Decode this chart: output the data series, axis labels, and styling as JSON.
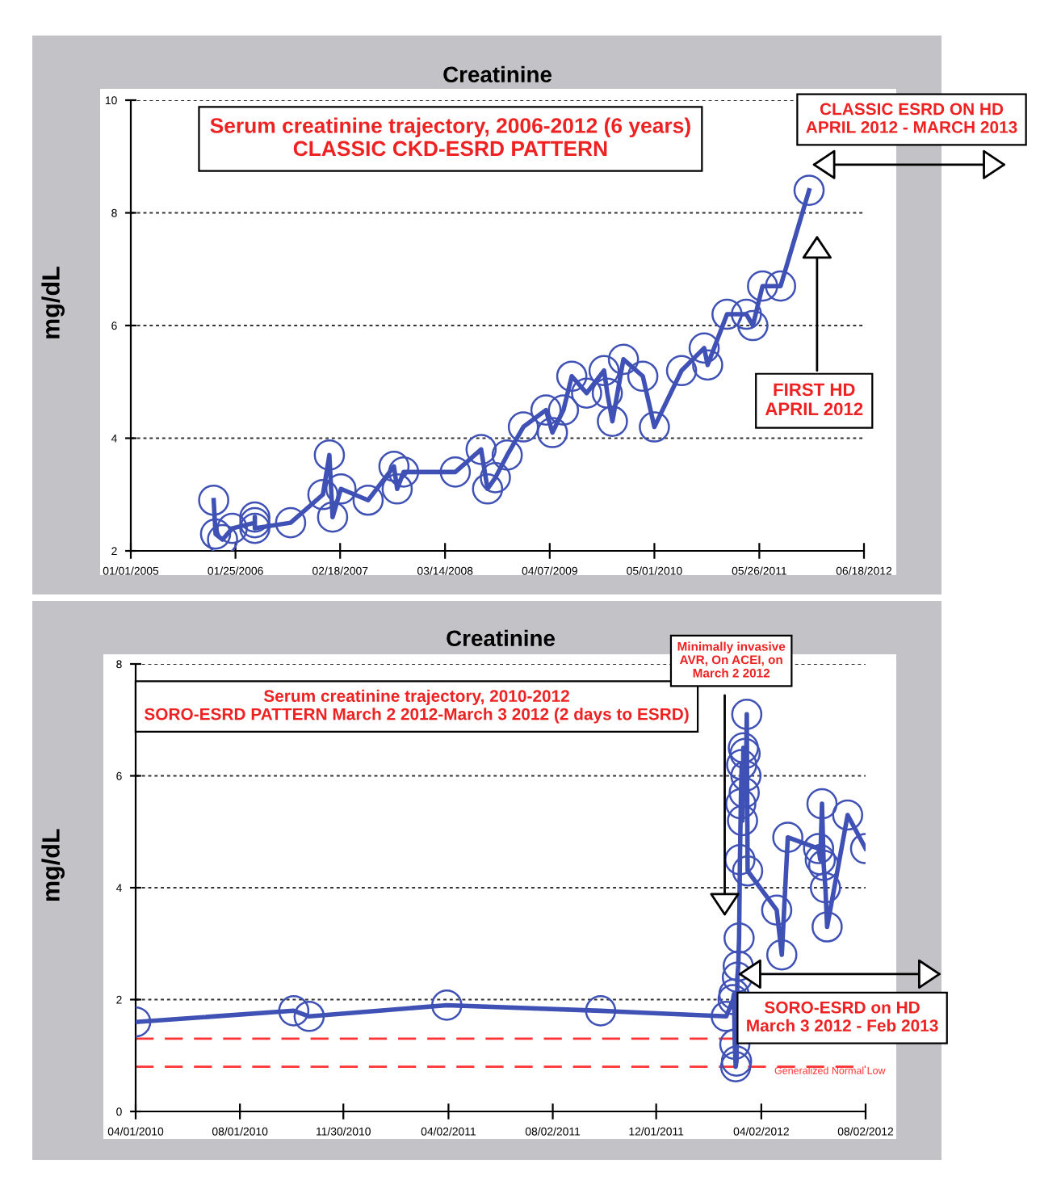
{
  "chart_data": [
    {
      "type": "line",
      "title": "Creatinine",
      "ylabel": "mg/dL",
      "x": [
        "2005-11-05",
        "2005-11-12",
        "2005-12-08",
        "2006-01-13",
        "2006-04-07",
        "2006-04-07",
        "2006-04-07",
        "2006-08-18",
        "2006-12-16",
        "2007-01-09",
        "2007-01-21",
        "2007-02-21",
        "2007-06-02",
        "2007-09-06",
        "2007-09-18",
        "2007-10-12",
        "2008-04-21",
        "2008-07-26",
        "2008-08-19",
        "2008-09-17",
        "2008-10-31",
        "2008-12-30",
        "2009-03-24",
        "2009-04-17",
        "2009-05-28",
        "2009-06-28",
        "2009-08-22",
        "2009-10-26",
        "2009-11-07",
        "2009-11-26",
        "2010-01-06",
        "2010-03-19",
        "2010-05-01",
        "2010-08-10",
        "2010-11-02",
        "2010-11-15",
        "2011-01-26",
        "2011-04-08",
        "2011-05-02",
        "2011-06-07",
        "2011-08-13",
        "2011-11-27"
      ],
      "series": [
        {
          "color": "#3f51b5",
          "values": [
            2.9,
            2.3,
            2.2,
            2.4,
            2.5,
            2.6,
            2.4,
            2.5,
            3.0,
            3.7,
            2.6,
            3.1,
            2.9,
            3.5,
            3.1,
            3.4,
            3.4,
            3.8,
            3.1,
            3.3,
            3.7,
            4.2,
            4.5,
            4.1,
            4.5,
            5.1,
            4.8,
            5.2,
            4.8,
            4.3,
            5.4,
            5.1,
            4.2,
            5.2,
            5.6,
            5.3,
            6.2,
            6.2,
            6.0,
            6.7,
            6.7,
            8.4
          ]
        }
      ],
      "xlim": [
        "2005-01-01",
        "2012-06-18"
      ],
      "xticks": [
        {
          "value": "2005-01-01",
          "label": "01/01/2005"
        },
        {
          "value": "2006-01-25",
          "label": "01/25/2006"
        },
        {
          "value": "2007-02-18",
          "label": "02/18/2007"
        },
        {
          "value": "2008-03-14",
          "label": "03/14/2008"
        },
        {
          "value": "2009-04-07",
          "label": "04/07/2009"
        },
        {
          "value": "2010-05-01",
          "label": "05/01/2010"
        },
        {
          "value": "2011-05-26",
          "label": "05/26/2011"
        },
        {
          "value": "2012-06-18",
          "label": "06/18/2012"
        }
      ],
      "ylim": [
        2,
        10
      ],
      "yticks": [
        2,
        4,
        6,
        8,
        10
      ],
      "grid": "y",
      "marker": "circle",
      "annotations": [
        "Serum creatinine trajectory, 2006-2012 (6 years)\nCLASSIC CKD-ESRD PATTERN",
        "CLASSIC ESRD ON HD\nAPRIL 2012 - MARCH 2013",
        "FIRST HD\nAPRIL 2012"
      ]
    },
    {
      "type": "line",
      "title": "Creatinine",
      "ylabel": "mg/dL",
      "x": [
        "2010-04-01",
        "2010-10-03",
        "2010-10-21",
        "2011-03-31",
        "2011-09-27",
        "2012-02-21",
        "2012-02-29",
        "2012-03-01",
        "2012-03-02",
        "2012-03-03",
        "2012-03-04",
        "2012-03-05",
        "2012-03-06",
        "2012-03-07",
        "2012-03-08",
        "2012-03-09",
        "2012-03-10",
        "2012-03-11",
        "2012-03-12",
        "2012-03-13",
        "2012-03-14",
        "2012-03-15",
        "2012-03-16",
        "2012-03-17",
        "2012-04-20",
        "2012-04-26",
        "2012-05-03",
        "2012-06-08",
        "2012-06-10",
        "2012-06-12",
        "2012-06-14",
        "2012-06-16",
        "2012-06-18",
        "2012-07-12",
        "2012-08-02"
      ],
      "series": [
        {
          "color": "#3f51b5",
          "values": [
            1.6,
            1.8,
            1.7,
            1.9,
            1.8,
            1.7,
            2.0,
            2.1,
            1.2,
            0.8,
            0.9,
            2.4,
            2.6,
            3.1,
            4.5,
            5.5,
            6.2,
            5.2,
            6.5,
            5.7,
            6.4,
            6.0,
            7.1,
            4.3,
            3.6,
            2.8,
            4.9,
            4.7,
            4.5,
            5.5,
            4.4,
            4.0,
            3.3,
            5.3,
            4.7
          ]
        }
      ],
      "xlim": [
        "2010-04-01",
        "2012-08-02"
      ],
      "xticks": [
        {
          "value": "2010-04-01",
          "label": "04/01/2010"
        },
        {
          "value": "2010-08-01",
          "label": "08/01/2010"
        },
        {
          "value": "2010-11-30",
          "label": "11/30/2010"
        },
        {
          "value": "2011-04-02",
          "label": "04/02/2011"
        },
        {
          "value": "2011-08-02",
          "label": "08/02/2011"
        },
        {
          "value": "2011-12-01",
          "label": "12/01/2011"
        },
        {
          "value": "2012-04-02",
          "label": "04/02/2012"
        },
        {
          "value": "2012-08-02",
          "label": "08/02/2012"
        }
      ],
      "ylim": [
        0,
        8
      ],
      "yticks": [
        0,
        2,
        4,
        6,
        8
      ],
      "grid": "y",
      "marker": "circle",
      "ref_lines": [
        {
          "axis": "y",
          "value": 1.3,
          "label": null,
          "color": "#ff3333",
          "line_style": "dashed"
        },
        {
          "axis": "y",
          "value": 0.8,
          "label": "Generalized Normal Low",
          "color": "#ff3333",
          "line_style": "dashed"
        }
      ],
      "annotations": [
        "Serum creatinine trajectory, 2010-2012\nSORO-ESRD PATTERN March 2 2012-March 3 2012 (2 days to ESRD)",
        "Minimally invasive\nAVR, On ACEI, on\nMarch 2 2012",
        "SORO-ESRD on HD\nMarch 3 2012 - Feb 2013"
      ]
    }
  ]
}
